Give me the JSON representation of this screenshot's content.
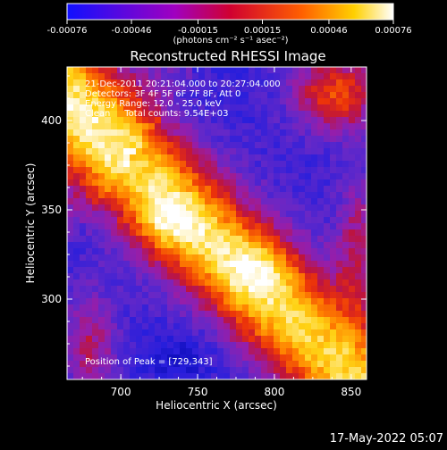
{
  "chart_data": {
    "type": "heatmap",
    "title": "Reconstructed RHESSI Image",
    "xlabel": "Heliocentric X (arcsec)",
    "ylabel": "Heliocentric Y (arcsec)",
    "xlim": [
      665,
      860
    ],
    "ylim": [
      255,
      430
    ],
    "x_ticks": [
      700,
      750,
      800,
      850
    ],
    "y_ticks": [
      300,
      350,
      400
    ],
    "colorbar": {
      "ticks": [
        "-0.00076",
        "-0.00046",
        "-0.00015",
        "0.00015",
        "0.00046",
        "0.00076"
      ],
      "range": [
        -0.00076,
        0.00076
      ],
      "unit_text": "(photons cm⁻² s⁻¹ asec⁻²)"
    },
    "annotations": [
      "21-Dec-2011 20:21:04.000 to 20:27:04.000",
      "Detectors: 3F 4F 5F 6F 7F 8F, Att 0",
      "Energy Range: 12.0 - 25.0 keV",
      "Clean     Total counts: 9.54E+03"
    ],
    "peak_label": "Position of Peak = [729,343]",
    "peak": [
      729,
      343
    ],
    "grid": false
  },
  "footer": {
    "timestamp": "17-May-2022 05:07"
  }
}
